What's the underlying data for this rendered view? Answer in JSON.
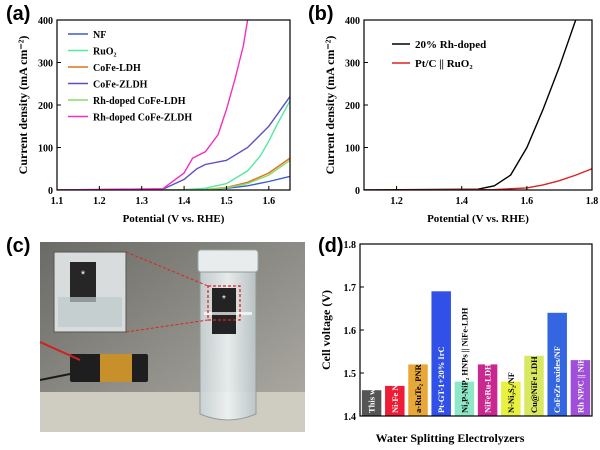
{
  "figure": {
    "panel_labels": [
      "(a)",
      "(b)",
      "(c)",
      "(d)"
    ],
    "photo_overlay_marker": "*",
    "colors": {
      "nf": "#3a5bd9",
      "ruo2": "#55e8a0",
      "cofe_ldh": "#e07020",
      "cofe_zldh": "#5a50c8",
      "rh_cofe_ldh": "#86e060",
      "rh_cofe_zldh": "#f030c0",
      "rh_doped_b": "#000000",
      "ptc_ruo2_b": "#dd2222",
      "box_line": "#dd2222"
    }
  },
  "chart_data": [
    {
      "type": "line",
      "panel": "(a)",
      "xlabel": "Potential (V vs. RHE)",
      "ylabel": "Current density (mA cm⁻²)",
      "xlim": [
        1.1,
        1.65
      ],
      "ylim": [
        0,
        400
      ],
      "xticks": [
        1.1,
        1.2,
        1.3,
        1.4,
        1.5,
        1.6
      ],
      "yticks": [
        0,
        100,
        200,
        300,
        400
      ],
      "legend_position": "top-left",
      "series": [
        {
          "name": "NF",
          "color": "#3a5bd9",
          "x": [
            1.1,
            1.45,
            1.5,
            1.55,
            1.6,
            1.65
          ],
          "y": [
            0,
            1,
            4,
            10,
            20,
            32
          ]
        },
        {
          "name": "RuO₂",
          "color": "#55e8a0",
          "x": [
            1.1,
            1.4,
            1.45,
            1.5,
            1.55,
            1.58,
            1.6,
            1.62,
            1.65
          ],
          "y": [
            0,
            1,
            4,
            15,
            45,
            80,
            115,
            155,
            210
          ]
        },
        {
          "name": "CoFe-LDH",
          "color": "#e07020",
          "x": [
            1.1,
            1.45,
            1.5,
            1.55,
            1.6,
            1.65
          ],
          "y": [
            0,
            1,
            6,
            18,
            40,
            75
          ]
        },
        {
          "name": "CoFe-ZLDH",
          "color": "#5a50c8",
          "x": [
            1.1,
            1.35,
            1.4,
            1.43,
            1.45,
            1.5,
            1.55,
            1.6,
            1.65
          ],
          "y": [
            0,
            2,
            25,
            50,
            60,
            70,
            100,
            150,
            220
          ]
        },
        {
          "name": "Rh-doped CoFe-LDH",
          "color": "#86e060",
          "x": [
            1.1,
            1.45,
            1.5,
            1.55,
            1.6,
            1.65
          ],
          "y": [
            0,
            1,
            5,
            15,
            35,
            70
          ]
        },
        {
          "name": "Rh-doped CoFe-ZLDH",
          "color": "#f030c0",
          "x": [
            1.1,
            1.35,
            1.4,
            1.42,
            1.45,
            1.48,
            1.5,
            1.52,
            1.54,
            1.55
          ],
          "y": [
            0,
            3,
            40,
            75,
            90,
            130,
            190,
            260,
            340,
            400
          ]
        }
      ]
    },
    {
      "type": "line",
      "panel": "(b)",
      "xlabel": "Potential (V vs. RHE)",
      "ylabel": "Current density (mA cm⁻²)",
      "xlim": [
        1.1,
        1.8
      ],
      "ylim": [
        0,
        400
      ],
      "xticks": [
        1.2,
        1.4,
        1.6,
        1.8
      ],
      "yticks": [
        0,
        100,
        200,
        300,
        400
      ],
      "legend_position": "top-left",
      "series": [
        {
          "name": "20% Rh-doped",
          "color": "#000000",
          "x": [
            1.1,
            1.45,
            1.5,
            1.55,
            1.6,
            1.65,
            1.7,
            1.75
          ],
          "y": [
            0,
            2,
            10,
            35,
            100,
            190,
            290,
            400
          ]
        },
        {
          "name": "Pt/C || RuO₂",
          "color": "#dd2222",
          "x": [
            1.1,
            1.5,
            1.6,
            1.65,
            1.7,
            1.75,
            1.8
          ],
          "y": [
            0,
            1,
            5,
            12,
            22,
            35,
            50
          ]
        }
      ]
    },
    {
      "type": "bar",
      "panel": "(d)",
      "xlabel": "Water Splitting Electrolyzers",
      "ylabel": "Cell voltage (V)",
      "ylim": [
        1.4,
        1.8
      ],
      "yticks": [
        1.4,
        1.5,
        1.6,
        1.7,
        1.8
      ],
      "categories": [
        "This work",
        "Ni-Fe NP",
        "a-RuTe₂ PNR",
        "Pt-GT-1+20% IrC",
        "Ni₂P-NiP₂ HNPs || NiFe-LDH",
        "NiFeRu-LDH",
        "N-Ni₃S₂/NF",
        "Cu@NiFe LDH",
        "CoFeZr oxides/NF",
        "Rh NP/C || NiFe-LDH"
      ],
      "values": [
        1.46,
        1.47,
        1.52,
        1.69,
        1.48,
        1.52,
        1.48,
        1.54,
        1.64,
        1.53
      ],
      "colors": [
        "#555555",
        "#ee1c35",
        "#e8a838",
        "#3050e8",
        "#8ee8c8",
        "#c82890",
        "#e8f040",
        "#d8e860",
        "#3366e0",
        "#a050d8"
      ],
      "label_colors": [
        "#ffffff",
        "#ffffff",
        "#000000",
        "#ffffff",
        "#000000",
        "#ffffff",
        "#000000",
        "#000000",
        "#ffffff",
        "#ffffff"
      ]
    }
  ]
}
